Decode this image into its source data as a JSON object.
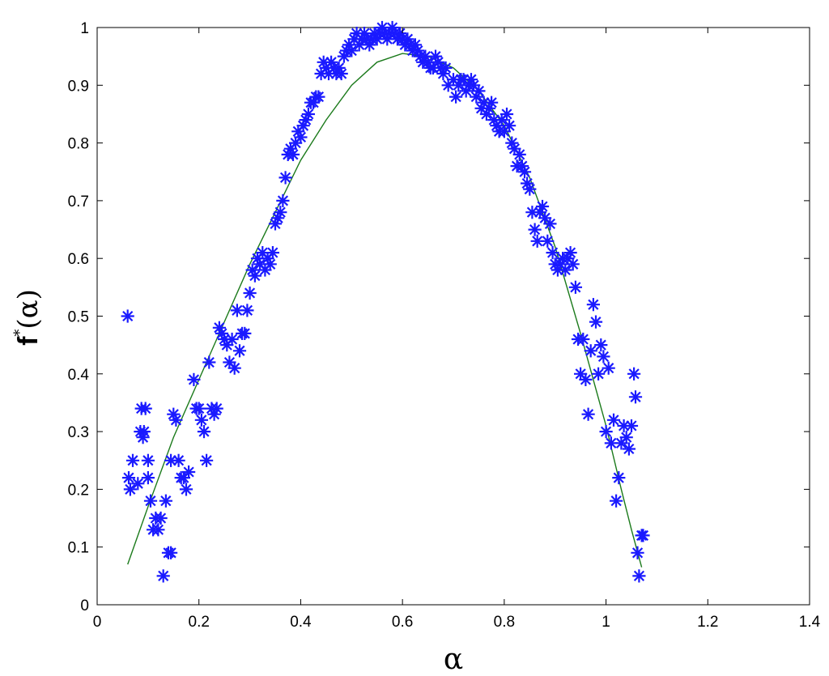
{
  "chart_data": {
    "type": "scatter",
    "xlabel": "α",
    "ylabel_main": "f",
    "ylabel_sup": "*",
    "ylabel_arg": "(α)",
    "xlim": [
      0,
      1.4
    ],
    "ylim": [
      0,
      1
    ],
    "xticks": [
      "0",
      "0.2",
      "0.4",
      "0.6",
      "0.8",
      "1",
      "1.2",
      "1.4"
    ],
    "yticks": [
      "0",
      "0.1",
      "0.2",
      "0.3",
      "0.4",
      "0.5",
      "0.6",
      "0.7",
      "0.8",
      "0.9",
      "1"
    ],
    "grid": false,
    "colors": {
      "markers": "#1a1aff",
      "fit_line": "#1b7a1b"
    },
    "series": [
      {
        "kind": "scatter",
        "marker": "asterisk",
        "points": [
          [
            0.06,
            0.5
          ],
          [
            0.062,
            0.22
          ],
          [
            0.065,
            0.2
          ],
          [
            0.07,
            0.25
          ],
          [
            0.08,
            0.21
          ],
          [
            0.085,
            0.3
          ],
          [
            0.087,
            0.34
          ],
          [
            0.09,
            0.29
          ],
          [
            0.092,
            0.3
          ],
          [
            0.095,
            0.34
          ],
          [
            0.1,
            0.25
          ],
          [
            0.1,
            0.22
          ],
          [
            0.105,
            0.18
          ],
          [
            0.11,
            0.13
          ],
          [
            0.115,
            0.15
          ],
          [
            0.12,
            0.13
          ],
          [
            0.125,
            0.15
          ],
          [
            0.13,
            0.05
          ],
          [
            0.135,
            0.18
          ],
          [
            0.14,
            0.09
          ],
          [
            0.145,
            0.09
          ],
          [
            0.145,
            0.25
          ],
          [
            0.15,
            0.33
          ],
          [
            0.155,
            0.32
          ],
          [
            0.16,
            0.25
          ],
          [
            0.165,
            0.22
          ],
          [
            0.17,
            0.22
          ],
          [
            0.175,
            0.2
          ],
          [
            0.18,
            0.23
          ],
          [
            0.19,
            0.39
          ],
          [
            0.195,
            0.34
          ],
          [
            0.2,
            0.34
          ],
          [
            0.205,
            0.32
          ],
          [
            0.21,
            0.3
          ],
          [
            0.215,
            0.25
          ],
          [
            0.22,
            0.42
          ],
          [
            0.225,
            0.34
          ],
          [
            0.23,
            0.33
          ],
          [
            0.235,
            0.34
          ],
          [
            0.24,
            0.48
          ],
          [
            0.245,
            0.47
          ],
          [
            0.25,
            0.46
          ],
          [
            0.255,
            0.45
          ],
          [
            0.26,
            0.42
          ],
          [
            0.265,
            0.46
          ],
          [
            0.27,
            0.41
          ],
          [
            0.275,
            0.51
          ],
          [
            0.28,
            0.44
          ],
          [
            0.285,
            0.47
          ],
          [
            0.29,
            0.47
          ],
          [
            0.295,
            0.51
          ],
          [
            0.3,
            0.54
          ],
          [
            0.305,
            0.58
          ],
          [
            0.31,
            0.57
          ],
          [
            0.315,
            0.6
          ],
          [
            0.32,
            0.59
          ],
          [
            0.325,
            0.61
          ],
          [
            0.33,
            0.58
          ],
          [
            0.335,
            0.6
          ],
          [
            0.34,
            0.59
          ],
          [
            0.345,
            0.61
          ],
          [
            0.35,
            0.66
          ],
          [
            0.355,
            0.67
          ],
          [
            0.36,
            0.68
          ],
          [
            0.365,
            0.7
          ],
          [
            0.37,
            0.74
          ],
          [
            0.375,
            0.78
          ],
          [
            0.38,
            0.79
          ],
          [
            0.385,
            0.78
          ],
          [
            0.39,
            0.8
          ],
          [
            0.395,
            0.82
          ],
          [
            0.4,
            0.81
          ],
          [
            0.405,
            0.83
          ],
          [
            0.41,
            0.84
          ],
          [
            0.415,
            0.85
          ],
          [
            0.42,
            0.87
          ],
          [
            0.425,
            0.87
          ],
          [
            0.43,
            0.88
          ],
          [
            0.435,
            0.88
          ],
          [
            0.44,
            0.92
          ],
          [
            0.445,
            0.94
          ],
          [
            0.45,
            0.93
          ],
          [
            0.455,
            0.92
          ],
          [
            0.46,
            0.94
          ],
          [
            0.465,
            0.93
          ],
          [
            0.47,
            0.92
          ],
          [
            0.475,
            0.93
          ],
          [
            0.48,
            0.92
          ],
          [
            0.485,
            0.95
          ],
          [
            0.49,
            0.96
          ],
          [
            0.495,
            0.97
          ],
          [
            0.5,
            0.96
          ],
          [
            0.505,
            0.98
          ],
          [
            0.51,
            0.99
          ],
          [
            0.515,
            0.97
          ],
          [
            0.52,
            0.98
          ],
          [
            0.525,
            0.99
          ],
          [
            0.53,
            0.98
          ],
          [
            0.535,
            0.97
          ],
          [
            0.54,
            0.98
          ],
          [
            0.545,
            0.99
          ],
          [
            0.55,
            0.98
          ],
          [
            0.555,
            0.99
          ],
          [
            0.56,
            1.0
          ],
          [
            0.565,
            0.99
          ],
          [
            0.57,
            0.98
          ],
          [
            0.575,
            0.99
          ],
          [
            0.58,
            1.0
          ],
          [
            0.585,
            0.99
          ],
          [
            0.59,
            0.98
          ],
          [
            0.595,
            0.99
          ],
          [
            0.6,
            0.98
          ],
          [
            0.605,
            0.97
          ],
          [
            0.61,
            0.98
          ],
          [
            0.615,
            0.97
          ],
          [
            0.62,
            0.96
          ],
          [
            0.625,
            0.97
          ],
          [
            0.63,
            0.96
          ],
          [
            0.635,
            0.95
          ],
          [
            0.64,
            0.94
          ],
          [
            0.645,
            0.95
          ],
          [
            0.65,
            0.94
          ],
          [
            0.655,
            0.93
          ],
          [
            0.66,
            0.93
          ],
          [
            0.665,
            0.95
          ],
          [
            0.67,
            0.94
          ],
          [
            0.675,
            0.93
          ],
          [
            0.68,
            0.92
          ],
          [
            0.685,
            0.93
          ],
          [
            0.69,
            0.9
          ],
          [
            0.7,
            0.91
          ],
          [
            0.705,
            0.88
          ],
          [
            0.71,
            0.9
          ],
          [
            0.715,
            0.91
          ],
          [
            0.72,
            0.91
          ],
          [
            0.725,
            0.89
          ],
          [
            0.73,
            0.9
          ],
          [
            0.735,
            0.91
          ],
          [
            0.74,
            0.9
          ],
          [
            0.745,
            0.88
          ],
          [
            0.75,
            0.89
          ],
          [
            0.755,
            0.86
          ],
          [
            0.76,
            0.87
          ],
          [
            0.765,
            0.85
          ],
          [
            0.77,
            0.86
          ],
          [
            0.775,
            0.87
          ],
          [
            0.78,
            0.84
          ],
          [
            0.785,
            0.83
          ],
          [
            0.79,
            0.82
          ],
          [
            0.795,
            0.84
          ],
          [
            0.8,
            0.82
          ],
          [
            0.805,
            0.85
          ],
          [
            0.81,
            0.83
          ],
          [
            0.815,
            0.8
          ],
          [
            0.82,
            0.79
          ],
          [
            0.825,
            0.76
          ],
          [
            0.83,
            0.78
          ],
          [
            0.835,
            0.76
          ],
          [
            0.84,
            0.75
          ],
          [
            0.845,
            0.73
          ],
          [
            0.85,
            0.72
          ],
          [
            0.855,
            0.68
          ],
          [
            0.86,
            0.65
          ],
          [
            0.865,
            0.63
          ],
          [
            0.87,
            0.68
          ],
          [
            0.875,
            0.69
          ],
          [
            0.88,
            0.67
          ],
          [
            0.885,
            0.63
          ],
          [
            0.89,
            0.66
          ],
          [
            0.895,
            0.61
          ],
          [
            0.9,
            0.59
          ],
          [
            0.905,
            0.58
          ],
          [
            0.91,
            0.59
          ],
          [
            0.915,
            0.6
          ],
          [
            0.92,
            0.58
          ],
          [
            0.925,
            0.6
          ],
          [
            0.93,
            0.61
          ],
          [
            0.935,
            0.59
          ],
          [
            0.94,
            0.55
          ],
          [
            0.945,
            0.46
          ],
          [
            0.95,
            0.4
          ],
          [
            0.955,
            0.46
          ],
          [
            0.96,
            0.39
          ],
          [
            0.965,
            0.33
          ],
          [
            0.97,
            0.44
          ],
          [
            0.975,
            0.52
          ],
          [
            0.98,
            0.49
          ],
          [
            0.985,
            0.4
          ],
          [
            0.99,
            0.45
          ],
          [
            0.995,
            0.43
          ],
          [
            1.0,
            0.3
          ],
          [
            1.005,
            0.41
          ],
          [
            1.01,
            0.28
          ],
          [
            1.015,
            0.32
          ],
          [
            1.02,
            0.18
          ],
          [
            1.025,
            0.22
          ],
          [
            1.03,
            0.28
          ],
          [
            1.035,
            0.31
          ],
          [
            1.04,
            0.29
          ],
          [
            1.045,
            0.27
          ],
          [
            1.05,
            0.31
          ],
          [
            1.055,
            0.4
          ],
          [
            1.058,
            0.36
          ],
          [
            1.062,
            0.09
          ],
          [
            1.065,
            0.05
          ],
          [
            1.07,
            0.12
          ],
          [
            1.073,
            0.12
          ]
        ]
      },
      {
        "kind": "line",
        "points": [
          [
            0.06,
            0.07
          ],
          [
            0.1,
            0.17
          ],
          [
            0.15,
            0.29
          ],
          [
            0.2,
            0.39
          ],
          [
            0.25,
            0.49
          ],
          [
            0.3,
            0.59
          ],
          [
            0.35,
            0.68
          ],
          [
            0.4,
            0.77
          ],
          [
            0.45,
            0.84
          ],
          [
            0.5,
            0.9
          ],
          [
            0.55,
            0.94
          ],
          [
            0.6,
            0.955
          ],
          [
            0.65,
            0.95
          ],
          [
            0.7,
            0.93
          ],
          [
            0.75,
            0.89
          ],
          [
            0.8,
            0.83
          ],
          [
            0.85,
            0.74
          ],
          [
            0.9,
            0.62
          ],
          [
            0.95,
            0.47
          ],
          [
            1.0,
            0.31
          ],
          [
            1.03,
            0.2
          ],
          [
            1.05,
            0.13
          ],
          [
            1.07,
            0.065
          ]
        ]
      }
    ]
  }
}
